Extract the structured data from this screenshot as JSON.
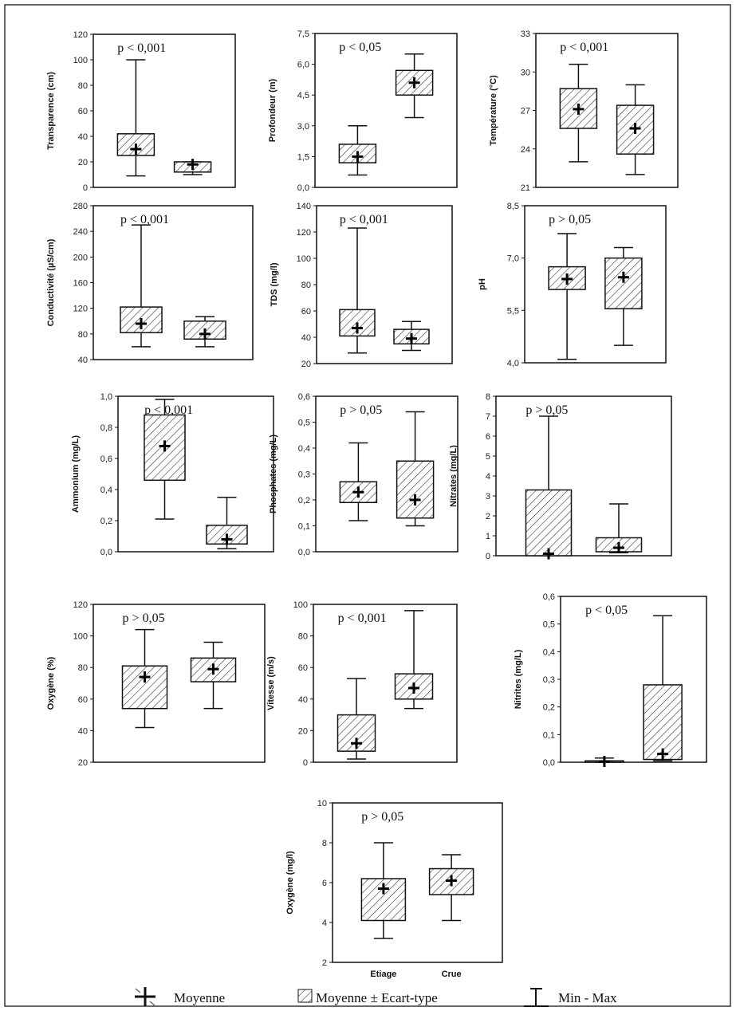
{
  "categories": [
    "Etiage",
    "Crue"
  ],
  "legend": {
    "mean_label": "Moyenne",
    "sd_label": "Moyenne ± Ecart-type",
    "minmax_label": "Min - Max"
  },
  "chart_data": [
    {
      "type": "box",
      "ylabel": "Transparence (cm)",
      "pvalue": "p < 0,001",
      "yticks": [
        "0",
        "20",
        "40",
        "60",
        "80",
        "100",
        "120"
      ],
      "ylim": [
        0,
        120
      ],
      "series": [
        {
          "name": "Etiage",
          "min": 9,
          "max": 100,
          "sd_low": 25,
          "sd_high": 42,
          "mean": 30
        },
        {
          "name": "Crue",
          "min": 10,
          "max": 20,
          "sd_low": 12,
          "sd_high": 20,
          "mean": 18
        }
      ]
    },
    {
      "type": "box",
      "ylabel": "Profondeur (m)",
      "pvalue": "p < 0,05",
      "yticks": [
        "0,0",
        "1,5",
        "3,0",
        "4,5",
        "6,0",
        "7,5"
      ],
      "ylim": [
        0,
        7.5
      ],
      "series": [
        {
          "name": "Etiage",
          "min": 0.6,
          "max": 3.0,
          "sd_low": 1.2,
          "sd_high": 2.1,
          "mean": 1.5
        },
        {
          "name": "Crue",
          "min": 3.4,
          "max": 6.5,
          "sd_low": 4.5,
          "sd_high": 5.7,
          "mean": 5.1
        }
      ]
    },
    {
      "type": "box",
      "ylabel": "Température (°C)",
      "pvalue": "p < 0,001",
      "yticks": [
        "21",
        "24",
        "27",
        "30",
        "33"
      ],
      "ylim": [
        21,
        33
      ],
      "series": [
        {
          "name": "Etiage",
          "min": 23.0,
          "max": 30.6,
          "sd_low": 25.6,
          "sd_high": 28.7,
          "mean": 27.1
        },
        {
          "name": "Crue",
          "min": 22.0,
          "max": 29.0,
          "sd_low": 23.6,
          "sd_high": 27.4,
          "mean": 25.6
        }
      ]
    },
    {
      "type": "box",
      "ylabel": "Conductivité (µS/cm)",
      "pvalue": "p < 0,001",
      "yticks": [
        "40",
        "80",
        "120",
        "160",
        "200",
        "240",
        "280"
      ],
      "ylim": [
        40,
        280
      ],
      "series": [
        {
          "name": "Etiage",
          "min": 60,
          "max": 250,
          "sd_low": 82,
          "sd_high": 122,
          "mean": 96
        },
        {
          "name": "Crue",
          "min": 60,
          "max": 107,
          "sd_low": 72,
          "sd_high": 100,
          "mean": 80
        }
      ]
    },
    {
      "type": "box",
      "ylabel": "TDS (mg/l)",
      "pvalue": "p < 0,001",
      "yticks": [
        "20",
        "40",
        "60",
        "80",
        "100",
        "120",
        "140"
      ],
      "ylim": [
        20,
        140
      ],
      "series": [
        {
          "name": "Etiage",
          "min": 28,
          "max": 123,
          "sd_low": 41,
          "sd_high": 61,
          "mean": 47
        },
        {
          "name": "Crue",
          "min": 30,
          "max": 52,
          "sd_low": 35,
          "sd_high": 46,
          "mean": 39
        }
      ]
    },
    {
      "type": "box",
      "ylabel": "pH",
      "pvalue": "p > 0,05",
      "yticks": [
        "4,0",
        "5,5",
        "7,0",
        "8,5"
      ],
      "ylim": [
        4,
        8.5
      ],
      "series": [
        {
          "name": "Etiage",
          "min": 4.1,
          "max": 7.7,
          "sd_low": 6.1,
          "sd_high": 6.75,
          "mean": 6.4
        },
        {
          "name": "Crue",
          "min": 4.5,
          "max": 7.3,
          "sd_low": 5.55,
          "sd_high": 7.0,
          "mean": 6.45
        }
      ]
    },
    {
      "type": "box",
      "ylabel": "Ammonium (mg/L)",
      "pvalue": "p < 0,001",
      "yticks": [
        "0,0",
        "0,2",
        "0,4",
        "0,6",
        "0,8",
        "1,0"
      ],
      "ylim": [
        0,
        1
      ],
      "series": [
        {
          "name": "Etiage",
          "min": 0.21,
          "max": 0.98,
          "sd_low": 0.46,
          "sd_high": 0.88,
          "mean": 0.68
        },
        {
          "name": "Crue",
          "min": 0.02,
          "max": 0.35,
          "sd_low": 0.05,
          "sd_high": 0.17,
          "mean": 0.08
        }
      ]
    },
    {
      "type": "box",
      "ylabel": "Phosphates (mg/L)",
      "pvalue": "p > 0,05",
      "yticks": [
        "0,0",
        "0,1",
        "0,2",
        "0,3",
        "0,4",
        "0,5",
        "0,6"
      ],
      "ylim": [
        0,
        0.6
      ],
      "series": [
        {
          "name": "Etiage",
          "min": 0.12,
          "max": 0.42,
          "sd_low": 0.19,
          "sd_high": 0.27,
          "mean": 0.23
        },
        {
          "name": "Crue",
          "min": 0.1,
          "max": 0.54,
          "sd_low": 0.13,
          "sd_high": 0.35,
          "mean": 0.2
        }
      ]
    },
    {
      "type": "box",
      "ylabel": "Nitrates (mg/L)",
      "pvalue": "p > 0,05",
      "yticks": [
        "0",
        "1",
        "2",
        "3",
        "4",
        "5",
        "6",
        "7",
        "8"
      ],
      "ylim": [
        0,
        8
      ],
      "series": [
        {
          "name": "Etiage",
          "min": 0,
          "max": 7.0,
          "sd_low": 0,
          "sd_high": 3.3,
          "mean": 0.1
        },
        {
          "name": "Crue",
          "min": 0.15,
          "max": 2.6,
          "sd_low": 0.2,
          "sd_high": 0.9,
          "mean": 0.4
        }
      ]
    },
    {
      "type": "box",
      "ylabel": "Oxygène (%)",
      "pvalue": "p > 0,05",
      "yticks": [
        "20",
        "40",
        "60",
        "80",
        "100",
        "120"
      ],
      "ylim": [
        20,
        120
      ],
      "series": [
        {
          "name": "Etiage",
          "min": 42,
          "max": 104,
          "sd_low": 54,
          "sd_high": 81,
          "mean": 74
        },
        {
          "name": "Crue",
          "min": 54,
          "max": 96,
          "sd_low": 71,
          "sd_high": 86,
          "mean": 79
        }
      ]
    },
    {
      "type": "box",
      "ylabel": "Vitesse (m/s)",
      "pvalue": "p < 0,001",
      "yticks": [
        "0",
        "20",
        "40",
        "60",
        "80",
        "100"
      ],
      "ylim": [
        0,
        100
      ],
      "series": [
        {
          "name": "Etiage",
          "min": 2,
          "max": 53,
          "sd_low": 7,
          "sd_high": 30,
          "mean": 12
        },
        {
          "name": "Crue",
          "min": 34,
          "max": 96,
          "sd_low": 40,
          "sd_high": 56,
          "mean": 47
        }
      ]
    },
    {
      "type": "box",
      "ylabel": "Nitrites (mg/L)",
      "pvalue": "p < 0,05",
      "yticks": [
        "0,0",
        "0,1",
        "0,2",
        "0,3",
        "0,4",
        "0,5",
        "0,6"
      ],
      "ylim": [
        0,
        0.6
      ],
      "series": [
        {
          "name": "Etiage",
          "min": 0,
          "max": 0.015,
          "sd_low": 0,
          "sd_high": 0.005,
          "mean": 0.003
        },
        {
          "name": "Crue",
          "min": 0.005,
          "max": 0.53,
          "sd_low": 0.01,
          "sd_high": 0.28,
          "mean": 0.03
        }
      ]
    },
    {
      "type": "box",
      "ylabel": "Oxygène (mg/l)",
      "pvalue": "p > 0,05",
      "yticks": [
        "2",
        "4",
        "6",
        "8",
        "10"
      ],
      "ylim": [
        2,
        10
      ],
      "series": [
        {
          "name": "Etiage",
          "min": 3.2,
          "max": 8.0,
          "sd_low": 4.1,
          "sd_high": 6.2,
          "mean": 5.7
        },
        {
          "name": "Crue",
          "min": 4.1,
          "max": 7.4,
          "sd_low": 5.4,
          "sd_high": 6.7,
          "mean": 6.1
        }
      ]
    }
  ]
}
